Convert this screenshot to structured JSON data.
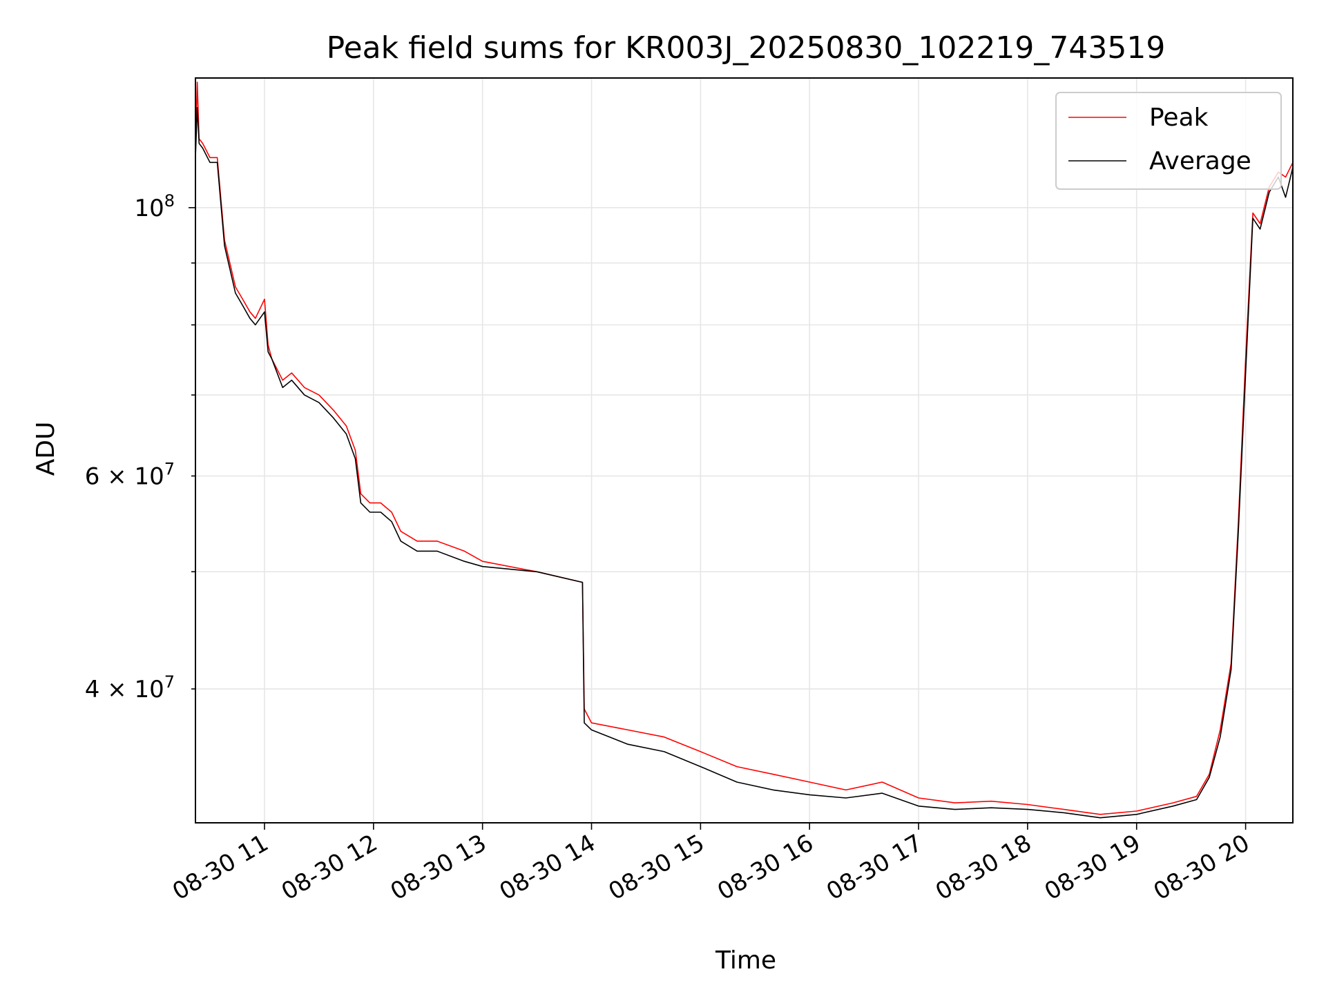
{
  "chart_data": {
    "type": "line",
    "title": "Peak field sums for KR003J_20250830_102219_743519",
    "xlabel": "Time",
    "ylabel": "ADU",
    "y_scale": "log",
    "ylim": [
      31000000,
      128000000
    ],
    "xlim": [
      "08-30 10:22",
      "08-30 20:26"
    ],
    "grid": true,
    "legend_position": "top-right",
    "x_ticks": [
      "08-30 11",
      "08-30 12",
      "08-30 13",
      "08-30 14",
      "08-30 15",
      "08-30 16",
      "08-30 17",
      "08-30 18",
      "08-30 19",
      "08-30 20"
    ],
    "y_ticks_major": [
      {
        "value": 100000000,
        "base": "10",
        "exp": "8"
      }
    ],
    "y_ticks_minor": [
      {
        "value": 40000000,
        "mant": "4",
        "base": "10",
        "exp": "7"
      },
      {
        "value": 60000000,
        "mant": "6",
        "base": "10",
        "exp": "7"
      }
    ],
    "y_ticks_unlabeled": [
      50000000,
      70000000,
      80000000,
      90000000
    ],
    "x": [
      "08-30 10:22",
      "08-30 10:23",
      "08-30 10:24",
      "08-30 10:26",
      "08-30 10:30",
      "08-30 10:34",
      "08-30 10:38",
      "08-30 10:44",
      "08-30 10:48",
      "08-30 10:52",
      "08-30 10:55",
      "08-30 11:00",
      "08-30 11:02",
      "08-30 11:04",
      "08-30 11:10",
      "08-30 11:15",
      "08-30 11:22",
      "08-30 11:30",
      "08-30 11:38",
      "08-30 11:45",
      "08-30 11:50",
      "08-30 11:53",
      "08-30 11:58",
      "08-30 12:04",
      "08-30 12:10",
      "08-30 12:15",
      "08-30 12:24",
      "08-30 12:35",
      "08-30 12:50",
      "08-30 13:00",
      "08-30 13:30",
      "08-30 13:55",
      "08-30 13:56",
      "08-30 14:00",
      "08-30 14:20",
      "08-30 14:40",
      "08-30 15:00",
      "08-30 15:20",
      "08-30 15:40",
      "08-30 16:00",
      "08-30 16:20",
      "08-30 16:40",
      "08-30 17:00",
      "08-30 17:20",
      "08-30 17:40",
      "08-30 18:00",
      "08-30 18:20",
      "08-30 18:40",
      "08-30 19:00",
      "08-30 19:20",
      "08-30 19:33",
      "08-30 19:40",
      "08-30 19:46",
      "08-30 19:52",
      "08-30 19:56",
      "08-30 20:00",
      "08-30 20:04",
      "08-30 20:08",
      "08-30 20:13",
      "08-30 20:18",
      "08-30 20:22",
      "08-30 20:26"
    ],
    "series": [
      {
        "name": "Peak",
        "color": "#ff0000",
        "values": [
          111000000,
          127000000,
          114000000,
          113000000,
          110000000,
          110000000,
          94000000,
          86000000,
          84000000,
          82000000,
          81000000,
          84000000,
          77000000,
          75000000,
          72000000,
          73000000,
          71000000,
          70000000,
          68000000,
          66000000,
          63000000,
          58000000,
          57000000,
          57000000,
          56000000,
          54000000,
          53000000,
          53000000,
          52000000,
          51000000,
          50000000,
          49000000,
          38500000,
          37500000,
          37000000,
          36500000,
          35500000,
          34500000,
          34000000,
          33500000,
          33000000,
          33500000,
          32500000,
          32200000,
          32300000,
          32100000,
          31800000,
          31500000,
          31700000,
          32200000,
          32600000,
          34000000,
          37000000,
          42000000,
          55000000,
          75000000,
          99000000,
          97000000,
          104000000,
          107000000,
          106000000,
          109000000
        ]
      },
      {
        "name": "Average",
        "color": "#000000",
        "values": [
          110000000,
          121000000,
          113000000,
          112000000,
          109000000,
          109000000,
          93000000,
          85000000,
          83000000,
          81000000,
          80000000,
          82000000,
          76000000,
          75000000,
          71000000,
          72000000,
          70000000,
          69000000,
          67000000,
          65000000,
          62000000,
          57000000,
          56000000,
          56000000,
          55000000,
          53000000,
          52000000,
          52000000,
          51000000,
          50500000,
          50000000,
          49000000,
          37500000,
          37000000,
          36000000,
          35500000,
          34500000,
          33500000,
          33000000,
          32700000,
          32500000,
          32800000,
          32000000,
          31800000,
          31900000,
          31800000,
          31600000,
          31300000,
          31500000,
          32000000,
          32400000,
          33800000,
          36500000,
          41500000,
          54000000,
          73000000,
          98000000,
          96000000,
          103000000,
          106000000,
          102000000,
          108000000
        ]
      }
    ]
  }
}
